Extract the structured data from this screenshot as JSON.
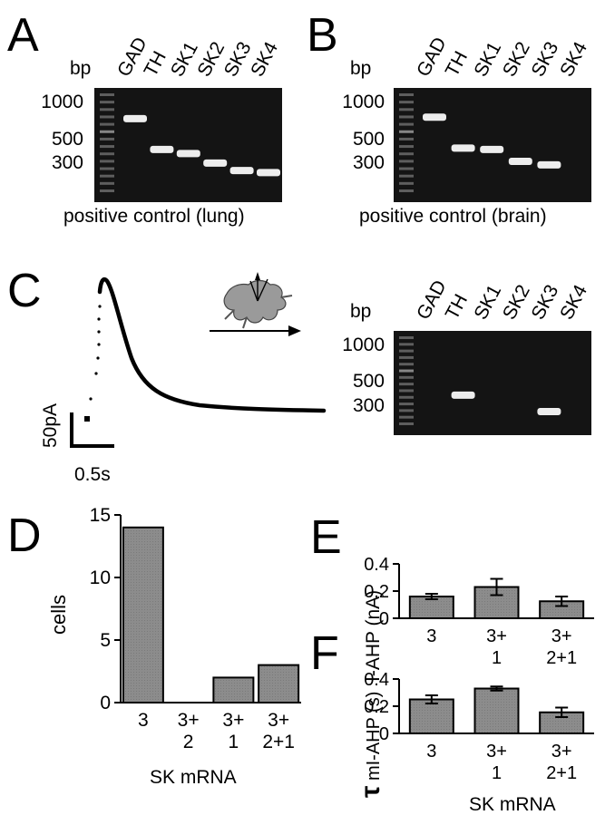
{
  "panel_letters": [
    "A",
    "B",
    "C",
    "D",
    "E",
    "F"
  ],
  "gels": [
    {
      "letter": "A",
      "bp_label": "bp",
      "lanes": [
        "GAD",
        "TH",
        "SK1",
        "SK2",
        "SK3",
        "SK4"
      ],
      "bp_ticks": [
        "1000",
        "500",
        "300"
      ],
      "caption": "positive control (lung)",
      "bands_bp": [
        700,
        380,
        350,
        290,
        250,
        240
      ]
    },
    {
      "letter": "B",
      "bp_label": "bp",
      "lanes": [
        "GAD",
        "TH",
        "SK1",
        "SK2",
        "SK3",
        "SK4"
      ],
      "bp_ticks": [
        "1000",
        "500",
        "300"
      ],
      "caption": "positive control (brain)",
      "bands_bp": [
        720,
        390,
        380,
        300,
        280,
        null
      ]
    },
    {
      "letter": "C",
      "bp_label": "bp",
      "lanes": [
        "GAD",
        "TH",
        "SK1",
        "SK2",
        "SK3",
        "SK4"
      ],
      "bp_ticks": [
        "1000",
        "500",
        "300"
      ],
      "caption": "",
      "bands_bp": [
        null,
        360,
        null,
        null,
        260,
        null
      ]
    }
  ],
  "trace_panel": {
    "current_scale": "50pA",
    "time_scale": "0.5s"
  },
  "chart_data": [
    {
      "panel": "D",
      "type": "bar",
      "categories": [
        [
          "3"
        ],
        [
          "3+",
          "2"
        ],
        [
          "3+",
          "1"
        ],
        [
          "3+",
          "2+1"
        ]
      ],
      "values": [
        14,
        0,
        2,
        3
      ],
      "ylabel": "cells",
      "xlabel": "SK mRNA",
      "ylim": [
        0,
        15
      ],
      "yticks": [
        "0",
        "5",
        "10",
        "15"
      ],
      "bar_color": "#8c8c8c"
    },
    {
      "panel": "E",
      "type": "bar",
      "categories": [
        [
          "3"
        ],
        [
          "3+",
          "1"
        ],
        [
          "3+",
          "2+1"
        ]
      ],
      "values": [
        0.16,
        0.23,
        0.125
      ],
      "errors": [
        0.02,
        0.06,
        0.035
      ],
      "ylabel": "I-AHP (nA)",
      "ylim": [
        0,
        0.4
      ],
      "yticks": [
        "0",
        "0.2",
        "0.4"
      ],
      "bar_color": "#8c8c8c"
    },
    {
      "panel": "F",
      "type": "bar",
      "categories": [
        [
          "3"
        ],
        [
          "3+",
          "1"
        ],
        [
          "3+",
          "2+1"
        ]
      ],
      "values": [
        0.25,
        0.33,
        0.155
      ],
      "errors": [
        0.03,
        0.015,
        0.035
      ],
      "ylabel_symbol": "τ",
      "ylabel": "mI-AHP (s)",
      "xlabel": "SK mRNA",
      "ylim": [
        0,
        0.4
      ],
      "yticks": [
        "0",
        "0.2",
        "0.4"
      ],
      "bar_color": "#8c8c8c"
    }
  ]
}
